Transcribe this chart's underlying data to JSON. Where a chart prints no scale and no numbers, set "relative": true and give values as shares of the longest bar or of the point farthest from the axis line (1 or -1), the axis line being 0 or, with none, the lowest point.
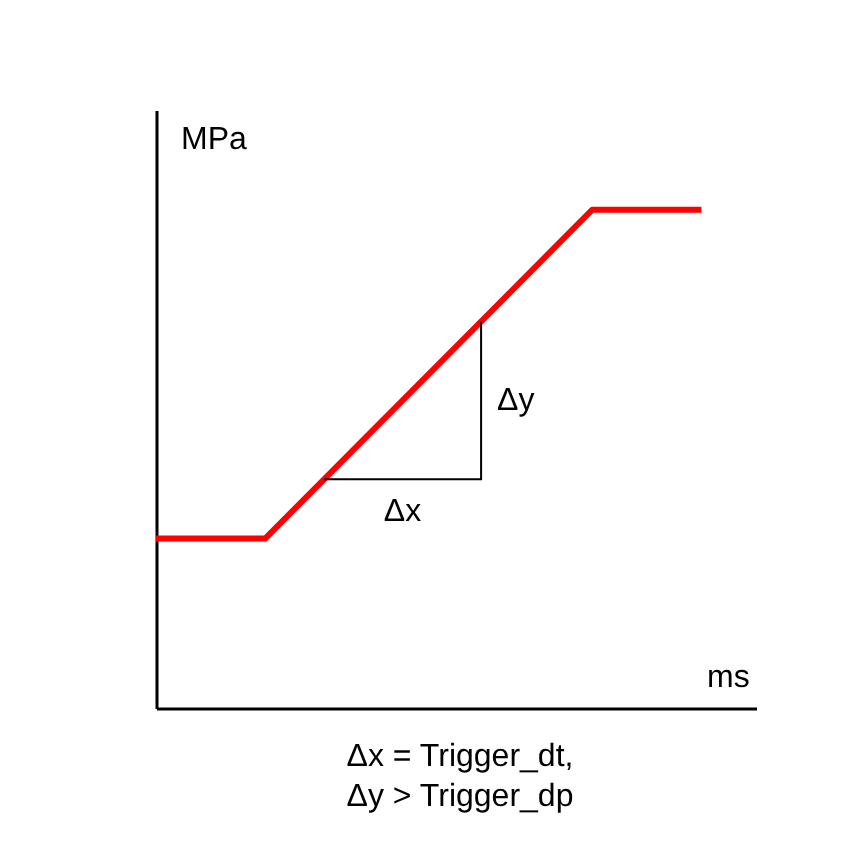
{
  "chart_data": {
    "type": "line",
    "relative": true,
    "xlabel": "ms",
    "ylabel": "MPa",
    "categories": [
      null,
      null,
      null,
      null,
      null,
      null,
      null,
      null,
      null,
      null,
      null
    ],
    "series": [
      {
        "color": "#ff0000",
        "values": [
          0.34,
          null,
          0.34,
          null,
          null,
          null,
          null,
          null,
          1,
          null,
          1
        ]
      }
    ],
    "annotations": [
      "Δx",
      "Δy",
      "Δx = Trigger_dt,",
      "Δy > Trigger_dp"
    ]
  }
}
